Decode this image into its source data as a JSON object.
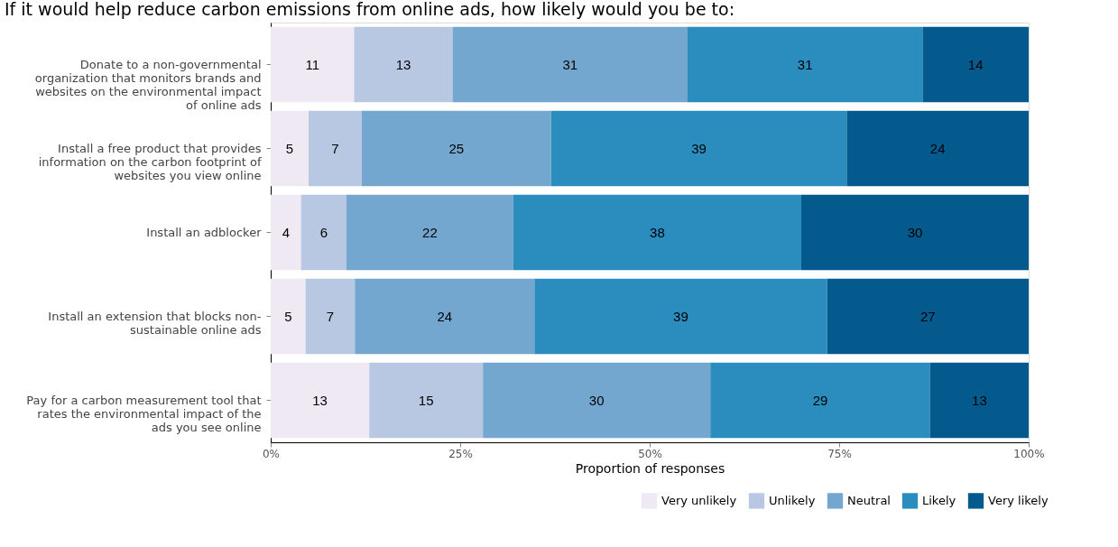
{
  "chart_data": {
    "type": "bar",
    "orientation": "horizontal",
    "stacked": true,
    "title": "If it would help reduce carbon emissions from online ads, how likely would you be to:",
    "xlabel": "Proportion of responses",
    "categories": [
      "Donate to a non-governmental organization that monitors brands and websites on the environmental impact of online ads",
      "Install a free product that provides information on the carbon footprint of websites you view online",
      "Install an adblocker",
      "Install an extension that blocks non-sustainable online ads",
      "Pay for a carbon measurement tool that rates the environmental impact of the ads you see online"
    ],
    "series": [
      {
        "name": "Very unlikely",
        "color": "#efe9f4",
        "values": [
          11,
          5,
          4,
          4.6,
          13
        ],
        "value_labels": [
          "11",
          "5",
          "4",
          "5",
          "13"
        ]
      },
      {
        "name": "Unlikely",
        "color": "#b8c8e2",
        "values": [
          13,
          7,
          6,
          6.5,
          15
        ],
        "value_labels": [
          "13",
          "7",
          "6",
          "7",
          "15"
        ]
      },
      {
        "name": "Neutral",
        "color": "#74a7d0",
        "values": [
          31,
          25,
          22,
          23.7,
          30
        ],
        "value_labels": [
          "31",
          "25",
          "22",
          "24",
          "30"
        ]
      },
      {
        "name": "Likely",
        "color": "#2b8cbe",
        "values": [
          31,
          39,
          38,
          38.6,
          29
        ],
        "value_labels": [
          "31",
          "39",
          "38",
          "39",
          "29"
        ]
      },
      {
        "name": "Very likely",
        "color": "#045a8d",
        "values": [
          14,
          24,
          30,
          26.6,
          13
        ],
        "value_labels": [
          "14",
          "24",
          "30",
          "27",
          "13"
        ]
      }
    ],
    "xlim": [
      0,
      100
    ],
    "xticks": [
      {
        "value": 0,
        "label": "0%"
      },
      {
        "value": 25,
        "label": "25%"
      },
      {
        "value": 50,
        "label": "50%"
      },
      {
        "value": 75,
        "label": "75%"
      },
      {
        "value": 100,
        "label": "100%"
      }
    ],
    "grid": false,
    "legend": "bottom right"
  }
}
